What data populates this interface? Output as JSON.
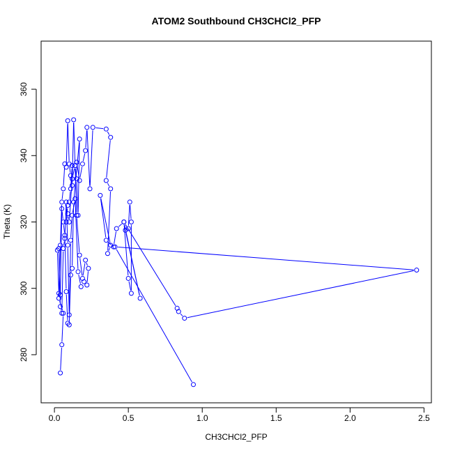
{
  "chart_data": {
    "type": "line",
    "title": "ATOM2 Southbound CH3CHCl2_PFP",
    "xlabel": "CH3CHCl2_PFP",
    "ylabel": "Theta (K)",
    "xlim": [
      -0.09,
      2.55
    ],
    "ylim": [
      265.5,
      374.5
    ],
    "x_ticks": [
      0.0,
      0.5,
      1.0,
      1.5,
      2.0,
      2.5
    ],
    "x_tick_labels": [
      "0.0",
      "0.5",
      "1.0",
      "1.5",
      "2.0",
      "2.5"
    ],
    "y_ticks": [
      280,
      300,
      320,
      340,
      360
    ],
    "y_tick_labels": [
      "280",
      "300",
      "320",
      "340",
      "360"
    ],
    "grid": false,
    "series_color": "#0000ff",
    "markers": "open-circle",
    "x": [
      0.04,
      0.05,
      0.06,
      0.03,
      0.04,
      0.05,
      0.06,
      0.07,
      0.08,
      0.09,
      0.1,
      0.11,
      0.12,
      0.13,
      0.14,
      0.15,
      0.16,
      0.17,
      0.13,
      0.12,
      0.11,
      0.1,
      0.09,
      0.08,
      0.07,
      0.06,
      0.05,
      0.04,
      0.03,
      0.02,
      0.03,
      0.04,
      0.05,
      0.06,
      0.07,
      0.08,
      0.09,
      0.1,
      0.11,
      0.12,
      0.14,
      0.16,
      0.18,
      0.2,
      0.22,
      0.23,
      0.21,
      0.19,
      0.17,
      0.15,
      0.14,
      0.12,
      0.1,
      0.09,
      0.08,
      0.09,
      0.1,
      0.11,
      0.12,
      0.15,
      0.17,
      0.19,
      0.21,
      0.22,
      0.24,
      0.26,
      0.35,
      0.38,
      0.35,
      0.38,
      0.36,
      0.38,
      0.31,
      0.35,
      0.4,
      0.42,
      0.47,
      0.5,
      0.52,
      0.52,
      0.51,
      0.5,
      0.48,
      0.58,
      0.47,
      0.83,
      0.84,
      0.88,
      2.45,
      0.41,
      0.94
    ],
    "y": [
      274.5,
      283.0,
      292.5,
      297.0,
      313.0,
      326.0,
      330.0,
      337.5,
      336.5,
      350.5,
      337.5,
      334.0,
      331.0,
      350.8,
      337.0,
      333.0,
      322.0,
      345.0,
      326.0,
      306.0,
      304.0,
      289.0,
      289.5,
      299.0,
      316.0,
      320.0,
      324.0,
      298.0,
      298.5,
      311.5,
      312.0,
      294.5,
      292.5,
      312.0,
      315.0,
      326.0,
      313.0,
      292.0,
      314.5,
      322.0,
      327.0,
      305.0,
      300.5,
      302.0,
      301.0,
      306.0,
      308.5,
      303.0,
      310.0,
      322.0,
      337.0,
      333.0,
      320.0,
      322.5,
      320.0,
      325.0,
      326.0,
      330.0,
      337.0,
      338.0,
      332.5,
      337.5,
      341.5,
      348.5,
      330.0,
      348.5,
      348.0,
      345.5,
      332.5,
      330.0,
      310.5,
      313.0,
      328.0,
      314.5,
      312.5,
      318.0,
      320.0,
      303.0,
      298.5,
      320.0,
      326.0,
      318.0,
      317.5,
      297.0,
      320.0,
      294.0,
      293.0,
      291.0,
      305.5,
      312.5,
      271.0
    ]
  }
}
